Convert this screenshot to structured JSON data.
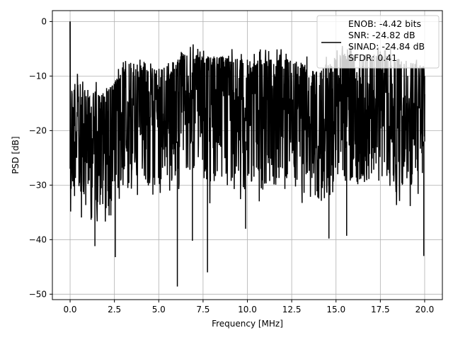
{
  "chart_data": {
    "type": "line",
    "xlabel": "Frequency [MHz]",
    "ylabel": "PSD [dB]",
    "xlim": [
      -1.0,
      21.0
    ],
    "ylim": [
      -51.0,
      2.0
    ],
    "xticks": [
      0.0,
      2.5,
      5.0,
      7.5,
      10.0,
      12.5,
      15.0,
      17.5,
      20.0
    ],
    "xtick_labels": [
      "0.0",
      "2.5",
      "5.0",
      "7.5",
      "10.0",
      "12.5",
      "15.0",
      "17.5",
      "20.0"
    ],
    "yticks": [
      0,
      -10,
      -20,
      -30,
      -40,
      -50
    ],
    "ytick_labels": [
      "0",
      "−10",
      "−20",
      "−30",
      "−40",
      "−50"
    ],
    "grid": true,
    "legend_position": "top-right",
    "legend_lines": [
      "ENOB: -4.42 bits",
      "SNR: -24.82 dB",
      "SINAD: -24.84 dB",
      "SFDR: 0.41"
    ],
    "series": [
      {
        "color": "#000000",
        "x_start": 0.0,
        "x_end": 20.0,
        "notable_points": [
          {
            "x": 0.0,
            "y": 0.0
          },
          {
            "x": 0.02,
            "y": -14.6
          },
          {
            "x": 0.05,
            "y": -27.0
          },
          {
            "x": 0.25,
            "y": -32.0
          },
          {
            "x": 1.4,
            "y": -41.2
          },
          {
            "x": 2.55,
            "y": -43.2
          },
          {
            "x": 6.05,
            "y": -48.6
          },
          {
            "x": 6.9,
            "y": -40.2
          },
          {
            "x": 7.75,
            "y": -46.0
          },
          {
            "x": 9.9,
            "y": -38.0
          },
          {
            "x": 14.6,
            "y": -39.8
          },
          {
            "x": 15.6,
            "y": -39.3
          },
          {
            "x": 19.95,
            "y": -43.0
          },
          {
            "x": 20.0,
            "y": -14.0
          }
        ],
        "upper_envelope": [
          {
            "x": 0.2,
            "y": -9.0
          },
          {
            "x": 1.0,
            "y": -11.0
          },
          {
            "x": 2.0,
            "y": -11.0
          },
          {
            "x": 3.4,
            "y": -5.5
          },
          {
            "x": 5.0,
            "y": -7.0
          },
          {
            "x": 6.6,
            "y": -4.0
          },
          {
            "x": 8.5,
            "y": -4.5
          },
          {
            "x": 10.0,
            "y": -5.0
          },
          {
            "x": 12.5,
            "y": -5.0
          },
          {
            "x": 14.2,
            "y": -7.0
          },
          {
            "x": 15.3,
            "y": -4.0
          },
          {
            "x": 17.6,
            "y": -4.0
          },
          {
            "x": 19.7,
            "y": -6.0
          }
        ]
      }
    ]
  }
}
